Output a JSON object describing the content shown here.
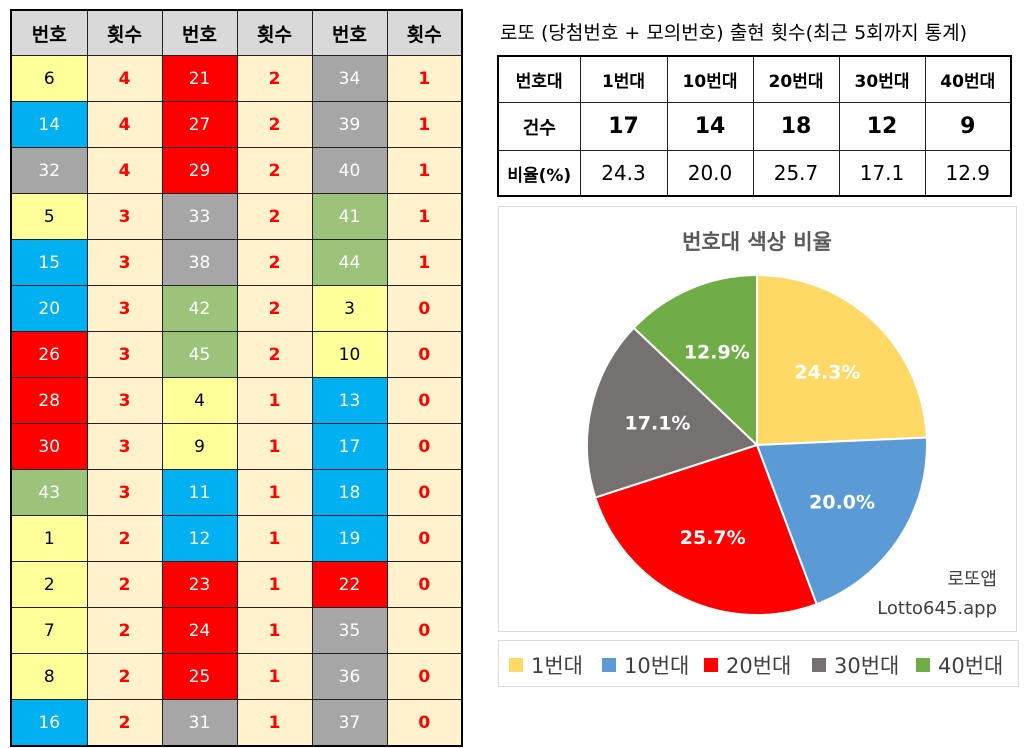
{
  "freq_table": {
    "headers": [
      "번호",
      "횟수",
      "번호",
      "횟수",
      "번호",
      "횟수"
    ],
    "rows": [
      [
        {
          "n": "6",
          "c": 0,
          "k": "4"
        },
        {
          "n": "21",
          "c": 2,
          "k": "2"
        },
        {
          "n": "34",
          "c": 3,
          "k": "1"
        }
      ],
      [
        {
          "n": "14",
          "c": 1,
          "k": "4"
        },
        {
          "n": "27",
          "c": 2,
          "k": "2"
        },
        {
          "n": "39",
          "c": 3,
          "k": "1"
        }
      ],
      [
        {
          "n": "32",
          "c": 3,
          "k": "4"
        },
        {
          "n": "29",
          "c": 2,
          "k": "2"
        },
        {
          "n": "40",
          "c": 3,
          "k": "1"
        }
      ],
      [
        {
          "n": "5",
          "c": 0,
          "k": "3"
        },
        {
          "n": "33",
          "c": 3,
          "k": "2"
        },
        {
          "n": "41",
          "c": 4,
          "k": "1"
        }
      ],
      [
        {
          "n": "15",
          "c": 1,
          "k": "3"
        },
        {
          "n": "38",
          "c": 3,
          "k": "2"
        },
        {
          "n": "44",
          "c": 4,
          "k": "1"
        }
      ],
      [
        {
          "n": "20",
          "c": 1,
          "k": "3"
        },
        {
          "n": "42",
          "c": 4,
          "k": "2"
        },
        {
          "n": "3",
          "c": 0,
          "k": "0"
        }
      ],
      [
        {
          "n": "26",
          "c": 2,
          "k": "3"
        },
        {
          "n": "45",
          "c": 4,
          "k": "2"
        },
        {
          "n": "10",
          "c": 0,
          "k": "0"
        }
      ],
      [
        {
          "n": "28",
          "c": 2,
          "k": "3"
        },
        {
          "n": "4",
          "c": 0,
          "k": "1"
        },
        {
          "n": "13",
          "c": 1,
          "k": "0"
        }
      ],
      [
        {
          "n": "30",
          "c": 2,
          "k": "3"
        },
        {
          "n": "9",
          "c": 0,
          "k": "1"
        },
        {
          "n": "17",
          "c": 1,
          "k": "0"
        }
      ],
      [
        {
          "n": "43",
          "c": 4,
          "k": "3"
        },
        {
          "n": "11",
          "c": 1,
          "k": "1"
        },
        {
          "n": "18",
          "c": 1,
          "k": "0"
        }
      ],
      [
        {
          "n": "1",
          "c": 0,
          "k": "2"
        },
        {
          "n": "12",
          "c": 1,
          "k": "1"
        },
        {
          "n": "19",
          "c": 1,
          "k": "0"
        }
      ],
      [
        {
          "n": "2",
          "c": 0,
          "k": "2"
        },
        {
          "n": "23",
          "c": 2,
          "k": "1"
        },
        {
          "n": "22",
          "c": 2,
          "k": "0"
        }
      ],
      [
        {
          "n": "7",
          "c": 0,
          "k": "2"
        },
        {
          "n": "24",
          "c": 2,
          "k": "1"
        },
        {
          "n": "35",
          "c": 3,
          "k": "0"
        }
      ],
      [
        {
          "n": "8",
          "c": 0,
          "k": "2"
        },
        {
          "n": "25",
          "c": 2,
          "k": "1"
        },
        {
          "n": "36",
          "c": 3,
          "k": "0"
        }
      ],
      [
        {
          "n": "16",
          "c": 1,
          "k": "2"
        },
        {
          "n": "31",
          "c": 3,
          "k": "1"
        },
        {
          "n": "37",
          "c": 3,
          "k": "0"
        }
      ]
    ]
  },
  "stats": {
    "title": "로또 (당첨번호 + 모의번호) 출현 횟수(최근 5회까지 통계)",
    "row_labels": [
      "번호대",
      "건수",
      "비율(%)"
    ],
    "bands": [
      "1번대",
      "10번대",
      "20번대",
      "30번대",
      "40번대"
    ],
    "counts": [
      "17",
      "14",
      "18",
      "12",
      "9"
    ],
    "ratios": [
      "24.3",
      "20.0",
      "25.7",
      "17.1",
      "12.9"
    ]
  },
  "colors": {
    "band_cells": [
      "#ffff99",
      "#00b0f0",
      "#ff0000",
      "#a6a6a6",
      "#9bc47a"
    ],
    "count_cell_bg": "#fff2cc",
    "count_text": "#ff0000"
  },
  "chart_data": {
    "type": "pie",
    "title": "번호대 색상 비율",
    "categories": [
      "1번대",
      "10번대",
      "20번대",
      "30번대",
      "40번대"
    ],
    "values": [
      24.3,
      20.0,
      25.7,
      17.1,
      12.9
    ],
    "labels": [
      "24.3%",
      "20.0%",
      "25.7%",
      "17.1%",
      "12.9%"
    ],
    "colors": [
      "#ffd966",
      "#5b9bd5",
      "#ff0000",
      "#767171",
      "#70ad47"
    ],
    "start": "12 o'clock, clockwise",
    "legend_position": "bottom",
    "watermark": [
      "로또앱",
      "Lotto645.app"
    ]
  }
}
